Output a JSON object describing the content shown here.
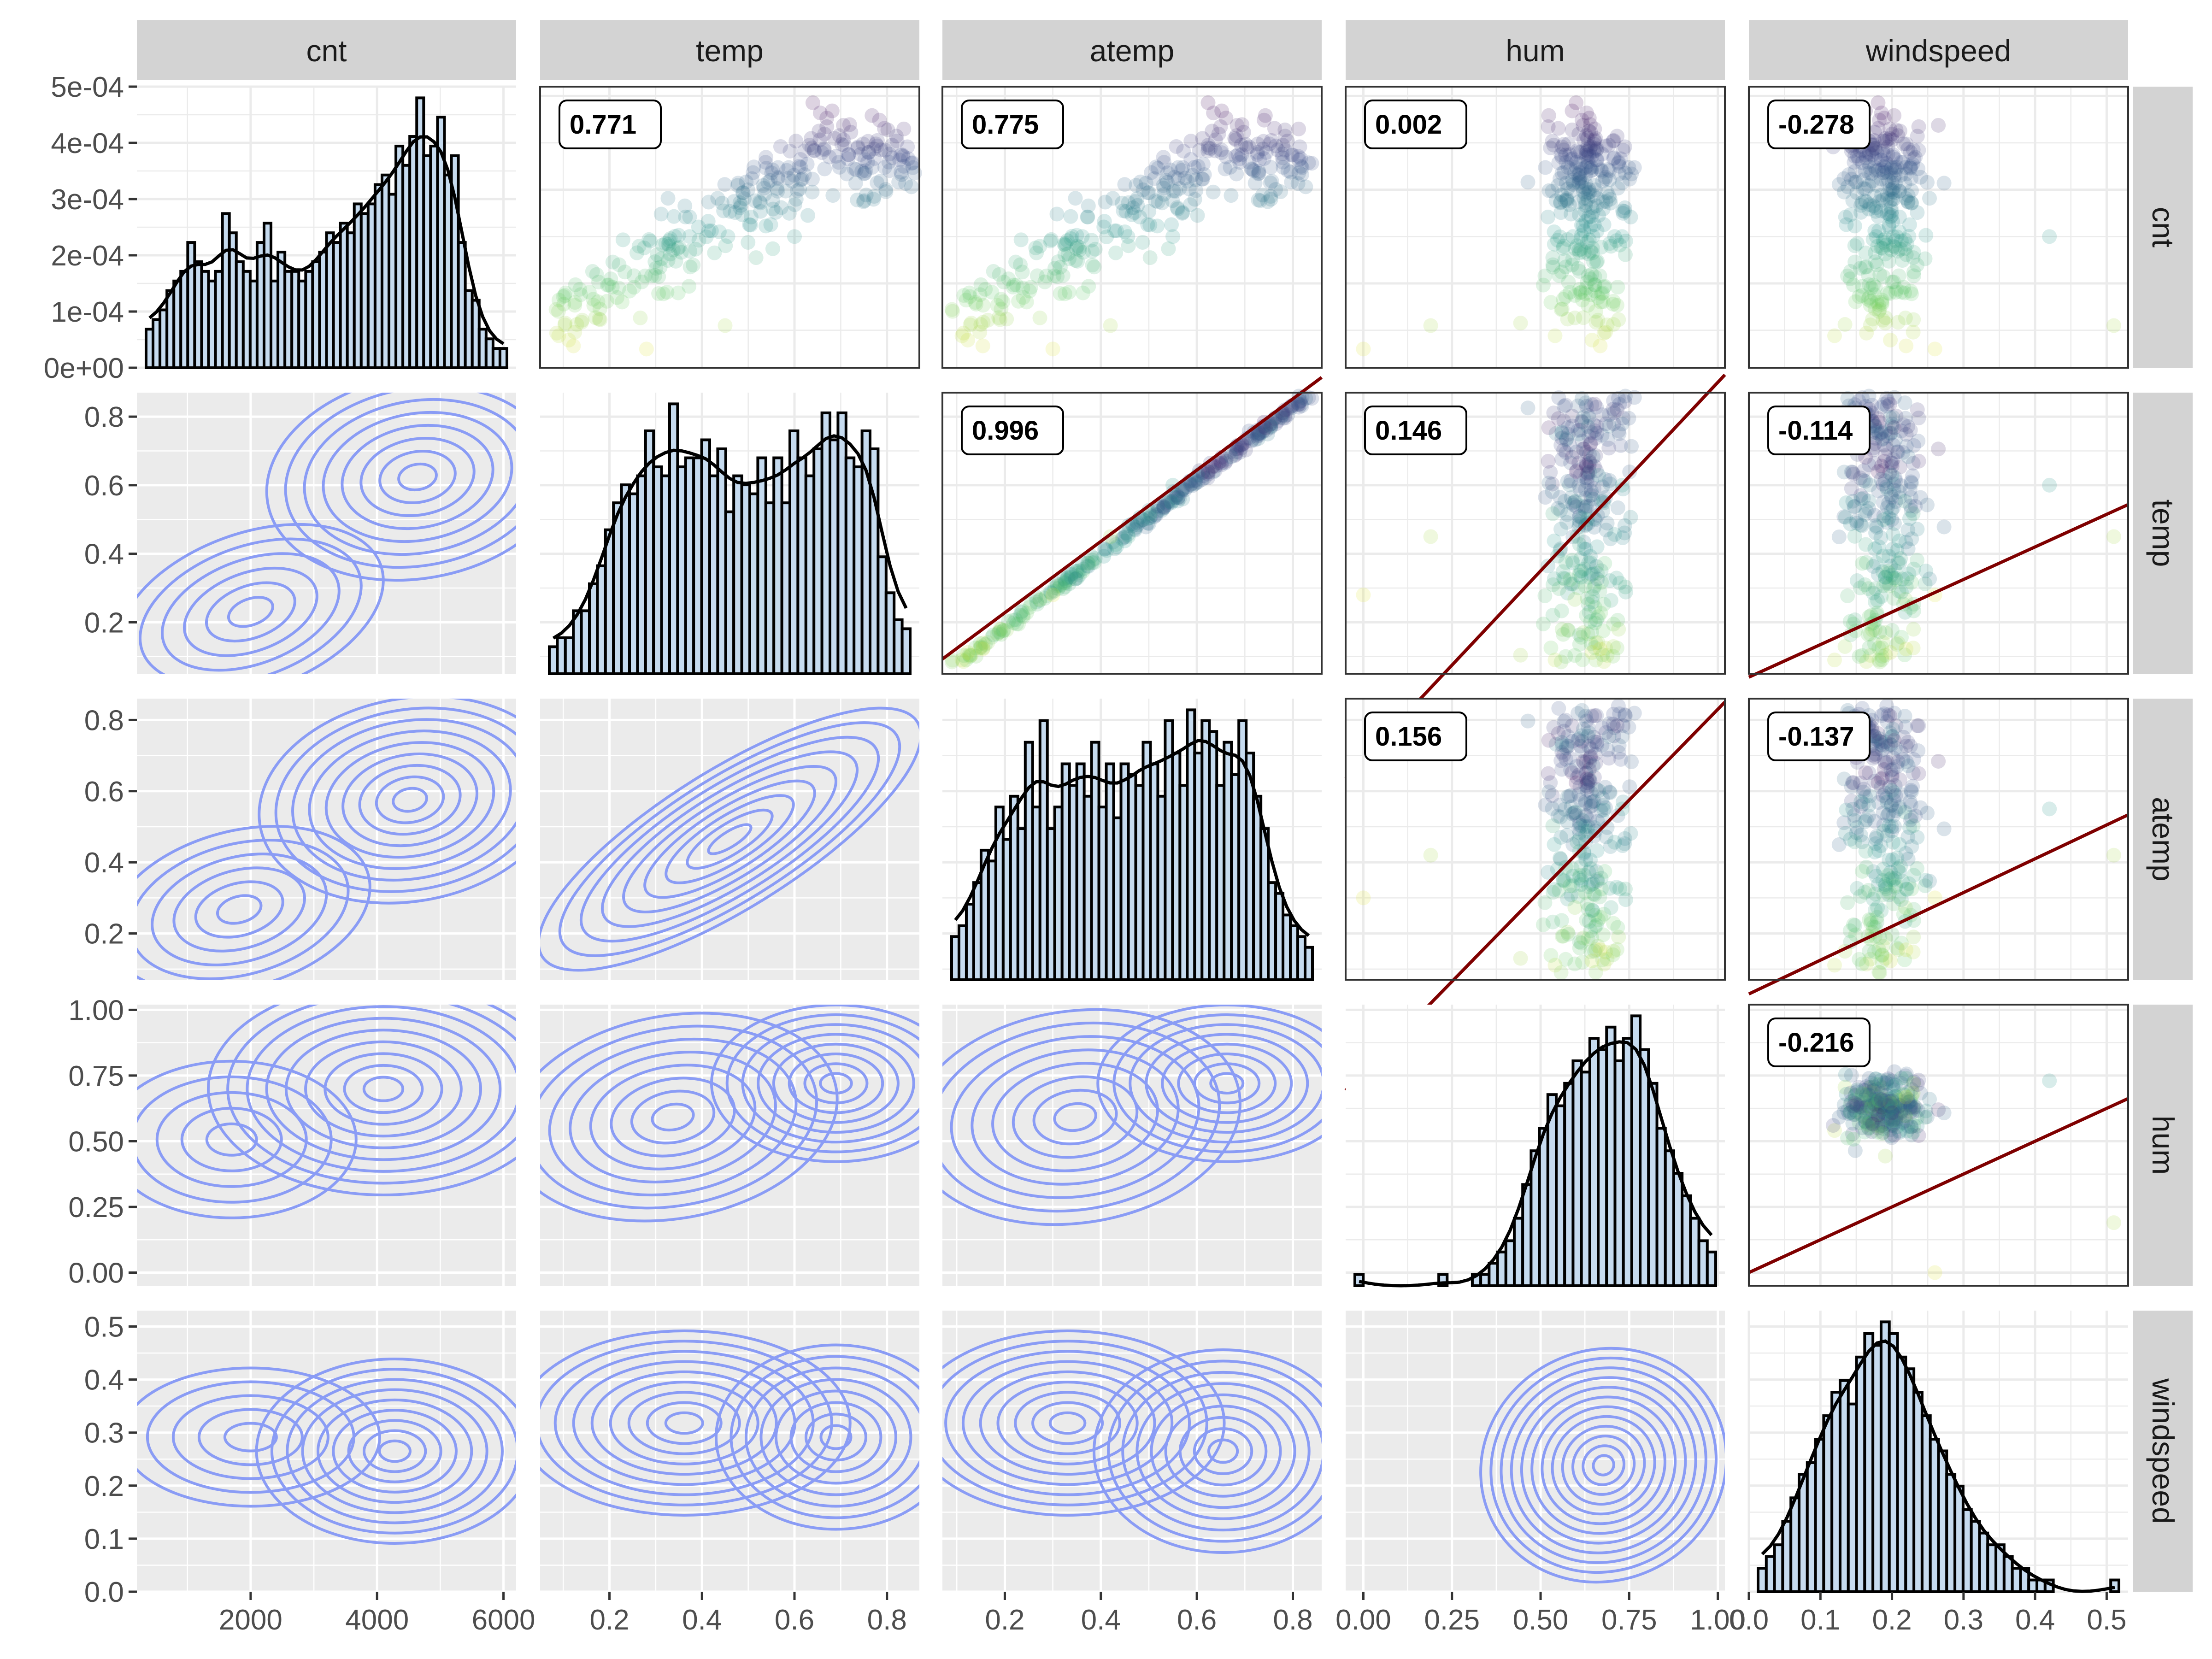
{
  "chart_data": {
    "type": "scatter-matrix",
    "variables": [
      "cnt",
      "temp",
      "atemp",
      "hum",
      "windspeed"
    ],
    "strip_labels": [
      "cnt",
      "temp",
      "atemp",
      "hum",
      "windspeed"
    ],
    "axes": {
      "cnt": {
        "range": [
          200,
          6200
        ],
        "ticks": [
          2000,
          4000,
          6000
        ],
        "tick_labels": [
          "2000",
          "4000",
          "6000"
        ]
      },
      "temp": {
        "range": [
          0.05,
          0.87
        ],
        "ticks": [
          0.2,
          0.4,
          0.6,
          0.8
        ],
        "tick_labels": [
          "0.2",
          "0.4",
          "0.6",
          "0.8"
        ]
      },
      "atemp": {
        "range": [
          0.07,
          0.86
        ],
        "ticks": [
          0.2,
          0.4,
          0.6,
          0.8
        ],
        "tick_labels": [
          "0.2",
          "0.4",
          "0.6",
          "0.8"
        ]
      },
      "hum": {
        "range": [
          -0.05,
          1.02
        ],
        "ticks": [
          0,
          0.25,
          0.5,
          0.75,
          1.0
        ],
        "tick_labels": [
          "0.00",
          "0.25",
          "0.50",
          "0.75",
          "1.00"
        ]
      },
      "windspeed": {
        "range": [
          0.0,
          0.53
        ],
        "ticks": [
          0.0,
          0.1,
          0.2,
          0.3,
          0.4,
          0.5
        ],
        "tick_labels": [
          "0.0",
          "0.1",
          "0.2",
          "0.3",
          "0.4",
          "0.5"
        ]
      }
    },
    "cnt_density_axis": {
      "range": [
        0,
        0.0005
      ],
      "ticks": [
        0,
        0.0001,
        0.0002,
        0.0003,
        0.0004,
        0.0005
      ],
      "tick_labels": [
        "0e+00",
        "1e-04",
        "2e-04",
        "3e-04",
        "4e-04",
        "5e-04"
      ]
    },
    "correlations": [
      {
        "row": "cnt",
        "col": "temp",
        "label": "0.771"
      },
      {
        "row": "cnt",
        "col": "atemp",
        "label": "0.775"
      },
      {
        "row": "cnt",
        "col": "hum",
        "label": "0.002"
      },
      {
        "row": "cnt",
        "col": "windspeed",
        "label": "-0.278"
      },
      {
        "row": "temp",
        "col": "atemp",
        "label": "0.996"
      },
      {
        "row": "temp",
        "col": "hum",
        "label": "0.146"
      },
      {
        "row": "temp",
        "col": "windspeed",
        "label": "-0.114"
      },
      {
        "row": "atemp",
        "col": "hum",
        "label": "0.156"
      },
      {
        "row": "atemp",
        "col": "windspeed",
        "label": "-0.137"
      },
      {
        "row": "hum",
        "col": "windspeed",
        "label": "-0.216"
      }
    ],
    "histograms": {
      "cnt": [
        4,
        5,
        6,
        8,
        9,
        10,
        13,
        11,
        10,
        9,
        10,
        16,
        14,
        11,
        10,
        9,
        13,
        15,
        9,
        12,
        10,
        10,
        9,
        10,
        11,
        12,
        14,
        13,
        15,
        14,
        17,
        16,
        17,
        19,
        20,
        18,
        23,
        21,
        24,
        28,
        22,
        23,
        26,
        20,
        22,
        13,
        8,
        7,
        4,
        3,
        2,
        2
      ],
      "temp": [
        3,
        4,
        4,
        7,
        7,
        10,
        12,
        16,
        19,
        21,
        20,
        22,
        27,
        23,
        22,
        30,
        23,
        24,
        24,
        26,
        22,
        25,
        18,
        22,
        21,
        20,
        24,
        19,
        24,
        19,
        27,
        24,
        22,
        25,
        29,
        26,
        29,
        24,
        23,
        27,
        25,
        13,
        9,
        6,
        5
      ],
      "atemp": [
        4,
        5,
        7,
        9,
        12,
        11,
        16,
        13,
        17,
        14,
        22,
        16,
        24,
        14,
        16,
        20,
        18,
        20,
        17,
        22,
        16,
        20,
        15,
        20,
        19,
        18,
        22,
        20,
        17,
        24,
        21,
        18,
        25,
        21,
        24,
        23,
        18,
        22,
        19,
        24,
        21,
        17,
        14,
        9,
        8,
        6,
        5,
        4,
        3
      ],
      "hum": [
        1,
        0,
        0,
        0,
        0,
        0,
        0,
        0,
        0,
        0,
        1,
        0,
        0,
        0,
        1,
        1,
        2,
        3,
        4,
        6,
        9,
        12,
        14,
        17,
        16,
        18,
        20,
        19,
        22,
        21,
        23,
        20,
        22,
        24,
        21,
        18,
        14,
        12,
        10,
        8,
        6,
        4,
        3
      ],
      "windspeed": [
        2,
        3,
        4,
        6,
        8,
        10,
        11,
        13,
        15,
        17,
        18,
        16,
        20,
        22,
        21,
        23,
        22,
        20,
        19,
        17,
        15,
        13,
        12,
        10,
        9,
        7,
        6,
        5,
        4,
        4,
        3,
        2,
        2,
        1,
        1,
        1,
        0,
        0,
        0,
        0,
        0,
        0,
        0,
        1
      ]
    },
    "point_colormap": "viridis",
    "fit_line_color": "#7f0000",
    "contour_color": "#8a9cf5",
    "strip_color": "#d3d3d3",
    "panel_bg_lower": "#ebebeb"
  }
}
